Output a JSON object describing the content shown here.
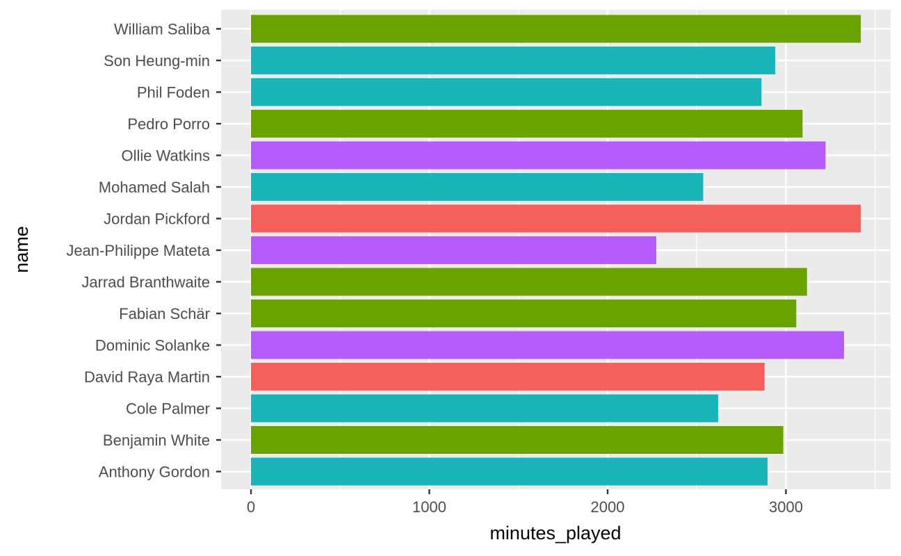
{
  "chart_data": {
    "type": "bar",
    "orientation": "horizontal",
    "xlabel": "minutes_played",
    "ylabel": "name",
    "xlim": [
      -170,
      3600
    ],
    "x_ticks": [
      0,
      1000,
      2000,
      3000
    ],
    "x_tick_labels": [
      "0",
      "1000",
      "2000",
      "3000"
    ],
    "grid": true,
    "legend": "none",
    "background": "#ebebeb",
    "gridline_color": "#ffffff",
    "tick_color": "#333333",
    "bars": [
      {
        "name": "William Saliba",
        "value": 3420,
        "color": "#6aa300"
      },
      {
        "name": "Son Heung-min",
        "value": 2940,
        "color": "#19b5b9"
      },
      {
        "name": "Phil Foden",
        "value": 2863,
        "color": "#19b5b9"
      },
      {
        "name": "Pedro Porro",
        "value": 3093,
        "color": "#6aa300"
      },
      {
        "name": "Ollie Watkins",
        "value": 3222,
        "color": "#b65cff"
      },
      {
        "name": "Mohamed Salah",
        "value": 2536,
        "color": "#19b5b9"
      },
      {
        "name": "Jordan Pickford",
        "value": 3420,
        "color": "#f5605b"
      },
      {
        "name": "Jean-Philippe Mateta",
        "value": 2273,
        "color": "#b65cff"
      },
      {
        "name": "Jarrad Branthwaite",
        "value": 3118,
        "color": "#6aa300"
      },
      {
        "name": "Fabian Schär",
        "value": 3058,
        "color": "#6aa300"
      },
      {
        "name": "Dominic Solanke",
        "value": 3326,
        "color": "#b65cff"
      },
      {
        "name": "David Raya Martin",
        "value": 2880,
        "color": "#f5605b"
      },
      {
        "name": "Cole Palmer",
        "value": 2620,
        "color": "#19b5b9"
      },
      {
        "name": "Benjamin White",
        "value": 2985,
        "color": "#6aa300"
      },
      {
        "name": "Anthony Gordon",
        "value": 2897,
        "color": "#19b5b9"
      }
    ]
  }
}
